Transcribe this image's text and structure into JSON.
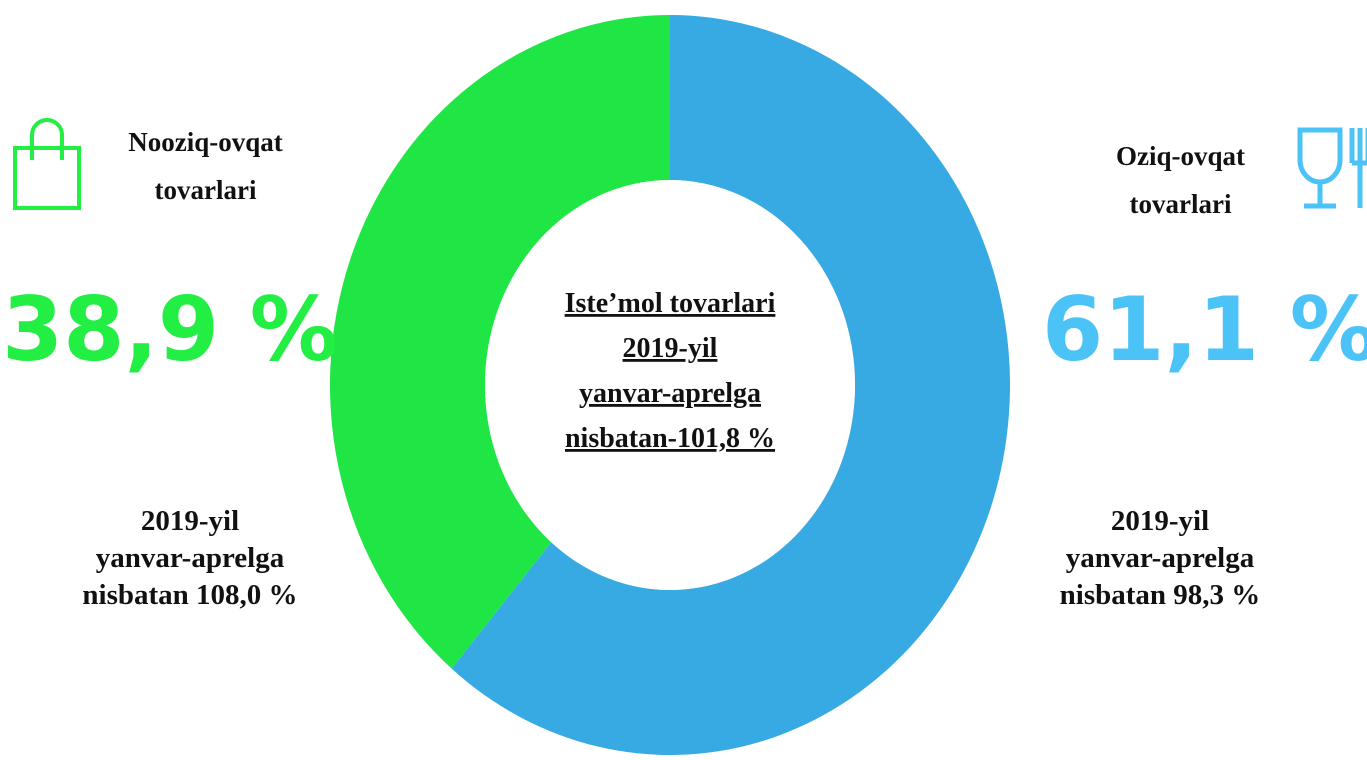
{
  "chart_data": {
    "type": "pie",
    "donut": true,
    "categories": [
      "Oziq-ovqat tovarlari",
      "Nooziq-ovqat tovarlari"
    ],
    "values": [
      61.1,
      38.9
    ],
    "value_labels": [
      "61,1 %",
      "38,9 %"
    ],
    "colors": [
      "#38aae3",
      "#1fe645"
    ],
    "label_colors": [
      "#4cc3f7",
      "#22ee44"
    ],
    "notes": [
      [
        "2019-yil",
        "yanvar-aprelga",
        "nisbatan 98,3 %"
      ],
      [
        "2019-yil",
        "yanvar-aprelga",
        "nisbatan 108,0 %"
      ]
    ],
    "center_text": [
      "Iste’mol tovarlari",
      "2019-yil",
      "yanvar-aprelga",
      "nisbatan-101,8 %"
    ]
  }
}
